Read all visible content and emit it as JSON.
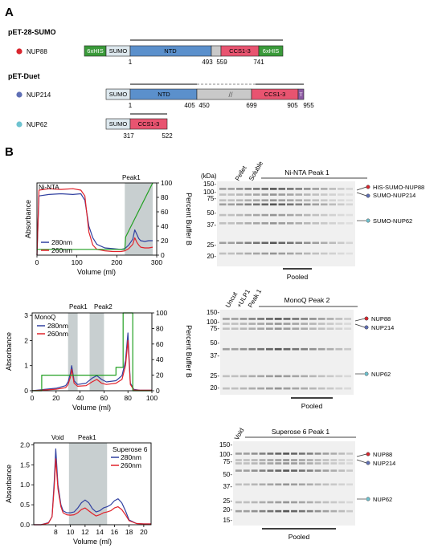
{
  "panels": {
    "a": "A",
    "b": "B"
  },
  "sections": {
    "sumo": "pET-28-SUMO",
    "duet": "pET-Duet"
  },
  "constructs": {
    "nup88": {
      "label": "NUP88",
      "boxes": {
        "his1": "6xHIS",
        "sumo": "SUMO",
        "ntd": "NTD",
        "ccs": "CCS1-3",
        "his2": "6xHIS"
      },
      "ticks": {
        "start": "1",
        "t493": "493",
        "t559": "559",
        "t741": "741"
      }
    },
    "nup214": {
      "label": "NUP214",
      "boxes": {
        "sumo": "SUMO",
        "ntd": "NTD",
        "ccs": "CCS1-3",
        "end": "T"
      },
      "ticks": {
        "start": "1",
        "t405": "405",
        "t450": "450",
        "t699": "699",
        "t905": "905",
        "t955": "955"
      },
      "break_mark": "//"
    },
    "nup62": {
      "label": "NUP62",
      "boxes": {
        "sumo": "SUMO",
        "ccs": "CCS1-3"
      },
      "ticks": {
        "t317": "317",
        "t522": "522"
      }
    }
  },
  "colors": {
    "his": "#3a9a3a",
    "sumo": "#dde8ee",
    "ntd": "#5b90cc",
    "linker": "#c9c9c9",
    "ccs": "#e85470",
    "nup214_end": "#8c5aa3",
    "dot_nup88": "#d9262e",
    "dot_nup214": "#5f6fb5",
    "dot_nup62": "#6ec3d0",
    "blue_trace": "#3040a0",
    "red_trace": "#e0222b",
    "green_trace": "#22a022",
    "peak_shade": "#c8cfd0",
    "gel_bg": "#f0f0f0",
    "band": "#3a3a3a"
  },
  "legend": {
    "c280": "280nm",
    "c260": "260nm"
  },
  "chart_data": [
    {
      "type": "line",
      "annotation": "Ni-NTA",
      "shade_label": "Peak1",
      "xlabel": "Volume (ml)",
      "ylabel": "Absorbance",
      "y2label": "Percent Buffer B",
      "x_ticks": [
        "0",
        "100",
        "200",
        "300"
      ],
      "y2_ticks": [
        "0",
        "20",
        "40",
        "60",
        "80",
        "100"
      ],
      "xlim": [
        0,
        300
      ],
      "ylim": [
        0,
        5
      ],
      "y2lim": [
        0,
        100
      ],
      "shaded": [
        [
          220,
          290
        ]
      ],
      "series": [
        {
          "name": "280nm",
          "x": [
            0,
            5,
            30,
            60,
            90,
            110,
            120,
            130,
            140,
            150,
            170,
            190,
            210,
            220,
            230,
            240,
            245,
            250,
            255,
            260,
            270,
            280,
            290
          ],
          "y": [
            0,
            4.1,
            4.2,
            4.25,
            4.2,
            4.25,
            3.8,
            2.0,
            1.2,
            0.75,
            0.5,
            0.45,
            0.4,
            0.45,
            0.7,
            1.1,
            1.75,
            1.45,
            1.15,
            1.0,
            0.95,
            1.0,
            1.0
          ]
        },
        {
          "name": "260nm",
          "x": [
            0,
            5,
            30,
            60,
            90,
            110,
            120,
            130,
            140,
            150,
            170,
            190,
            210,
            220,
            230,
            240,
            245,
            250,
            255,
            260,
            270,
            280,
            290
          ],
          "y": [
            0,
            4.5,
            4.6,
            4.55,
            4.6,
            4.5,
            4.1,
            1.6,
            0.7,
            0.4,
            0.3,
            0.25,
            0.25,
            0.3,
            0.45,
            0.75,
            1.2,
            0.9,
            0.7,
            0.55,
            0.5,
            0.5,
            0.55
          ]
        },
        {
          "name": "Percent Buffer B",
          "axis": "right",
          "x": [
            0,
            220,
            222,
            290
          ],
          "y": [
            8,
            8,
            25,
            100
          ]
        }
      ]
    },
    {
      "type": "line",
      "annotation": "MonoQ",
      "shade_labels": [
        "Peak1",
        "Peak2"
      ],
      "xlabel": "Volume (ml)",
      "ylabel": "Absorbance",
      "y2label": "Percent Buffer B",
      "x_ticks": [
        "0",
        "20",
        "40",
        "60",
        "80",
        "100"
      ],
      "y_ticks": [
        "0",
        "1",
        "2",
        "3"
      ],
      "y2_ticks": [
        "0",
        "20",
        "40",
        "60",
        "80",
        "100"
      ],
      "xlim": [
        0,
        100
      ],
      "ylim": [
        0,
        3.1
      ],
      "y2lim": [
        0,
        100
      ],
      "shaded": [
        [
          30,
          38
        ],
        [
          48,
          60
        ]
      ],
      "series": [
        {
          "name": "280nm",
          "x": [
            0,
            10,
            20,
            28,
            30,
            32,
            33,
            35,
            38,
            45,
            50,
            54,
            58,
            62,
            70,
            75,
            78,
            80,
            82,
            85,
            90,
            100
          ],
          "y": [
            0,
            0.05,
            0.1,
            0.2,
            0.35,
            0.7,
            1.0,
            0.4,
            0.25,
            0.3,
            0.5,
            0.6,
            0.45,
            0.35,
            0.4,
            0.6,
            1.2,
            2.3,
            0.3,
            0.05,
            0.02,
            0.02
          ]
        },
        {
          "name": "260nm",
          "x": [
            0,
            10,
            20,
            28,
            30,
            32,
            33,
            35,
            38,
            45,
            50,
            54,
            58,
            62,
            70,
            75,
            78,
            80,
            82,
            85,
            90,
            100
          ],
          "y": [
            0,
            0.03,
            0.06,
            0.12,
            0.25,
            0.55,
            0.85,
            0.3,
            0.18,
            0.2,
            0.35,
            0.45,
            0.3,
            0.25,
            0.3,
            0.45,
            1.0,
            2.0,
            0.25,
            0.03,
            0.02,
            0.02
          ]
        },
        {
          "name": "Percent Buffer B",
          "axis": "right",
          "x": [
            0,
            8,
            8,
            70,
            70,
            76,
            76,
            84,
            84,
            100
          ],
          "y": [
            0,
            0,
            20,
            20,
            30,
            30,
            100,
            100,
            0,
            0
          ]
        }
      ]
    },
    {
      "type": "line",
      "annotation": "Superose 6",
      "shade_labels": [
        "Void",
        "Peak1"
      ],
      "xlabel": "Volume (ml)",
      "ylabel": "Absorbance",
      "x_ticks": [
        "8",
        "10",
        "12",
        "14",
        "16",
        "18",
        "20"
      ],
      "y_ticks": [
        "0.0",
        "0.5",
        "1.0",
        "1.5",
        "2.0"
      ],
      "xlim": [
        5,
        21
      ],
      "ylim": [
        0,
        2.05
      ],
      "shaded": [
        [
          9.8,
          15
        ]
      ],
      "series": [
        {
          "name": "280nm",
          "x": [
            5,
            6,
            7,
            7.5,
            7.8,
            8.0,
            8.3,
            8.7,
            9.0,
            9.5,
            10,
            10.5,
            11,
            11.5,
            12,
            12.5,
            13,
            13.5,
            14,
            14.5,
            15,
            15.5,
            16,
            16.5,
            17,
            17.5,
            18,
            19,
            20,
            21
          ],
          "y": [
            0,
            0,
            0.05,
            0.2,
            1.1,
            1.9,
            1.0,
            0.5,
            0.35,
            0.3,
            0.3,
            0.32,
            0.42,
            0.55,
            0.62,
            0.55,
            0.4,
            0.32,
            0.35,
            0.42,
            0.45,
            0.5,
            0.6,
            0.65,
            0.55,
            0.35,
            0.12,
            0.03,
            0.02,
            0.02
          ]
        },
        {
          "name": "260nm",
          "x": [
            5,
            6,
            7,
            7.5,
            7.8,
            8.0,
            8.3,
            8.7,
            9.0,
            9.5,
            10,
            10.5,
            11,
            11.5,
            12,
            12.5,
            13,
            13.5,
            14,
            14.5,
            15,
            15.5,
            16,
            16.5,
            17,
            17.5,
            18,
            19,
            20,
            21
          ],
          "y": [
            0,
            0,
            0.04,
            0.2,
            0.95,
            1.65,
            0.9,
            0.45,
            0.3,
            0.25,
            0.24,
            0.25,
            0.3,
            0.38,
            0.42,
            0.35,
            0.28,
            0.22,
            0.25,
            0.3,
            0.32,
            0.35,
            0.42,
            0.45,
            0.38,
            0.25,
            0.1,
            0.03,
            0.02,
            0.02
          ]
        }
      ]
    }
  ],
  "gels": [
    {
      "title": "Ni-NTA Peak 1",
      "kda": "(kDa)",
      "lane_labels": [
        "Pellet",
        "Soluble"
      ],
      "markers": [
        "150-",
        "100-",
        "75-",
        "50-",
        "37-",
        "25-",
        "20-"
      ],
      "marker_kda": [
        150,
        100,
        75,
        50,
        37,
        25,
        20
      ],
      "pooled": "Pooled",
      "band_labels": [
        "HIS-SUMO-NUP88",
        "SUMO-NUP214",
        "SUMO-NUP62"
      ]
    },
    {
      "title": "MonoQ Peak 2",
      "kda": "",
      "lane_labels": [
        "Uncut",
        "+ULP1",
        "Peak 1"
      ],
      "markers": [
        "150-",
        "100-",
        "75-",
        "50-",
        "37-",
        "25-",
        "20-"
      ],
      "marker_kda": [
        150,
        100,
        75,
        50,
        37,
        25,
        20
      ],
      "pooled": "Pooled",
      "band_labels": [
        "NUP88",
        "NUP214",
        "NUP62"
      ]
    },
    {
      "title": "Superose 6 Peak 1",
      "kda": "",
      "lane_labels": [
        "Void"
      ],
      "markers": [
        "150-",
        "100-",
        "75-",
        "50-",
        "37-",
        "25-",
        "20-",
        "15-"
      ],
      "marker_kda": [
        150,
        100,
        75,
        50,
        37,
        25,
        20,
        15
      ],
      "pooled": "Pooled",
      "band_labels": [
        "NUP88",
        "NUP214",
        "NUP62"
      ]
    }
  ]
}
